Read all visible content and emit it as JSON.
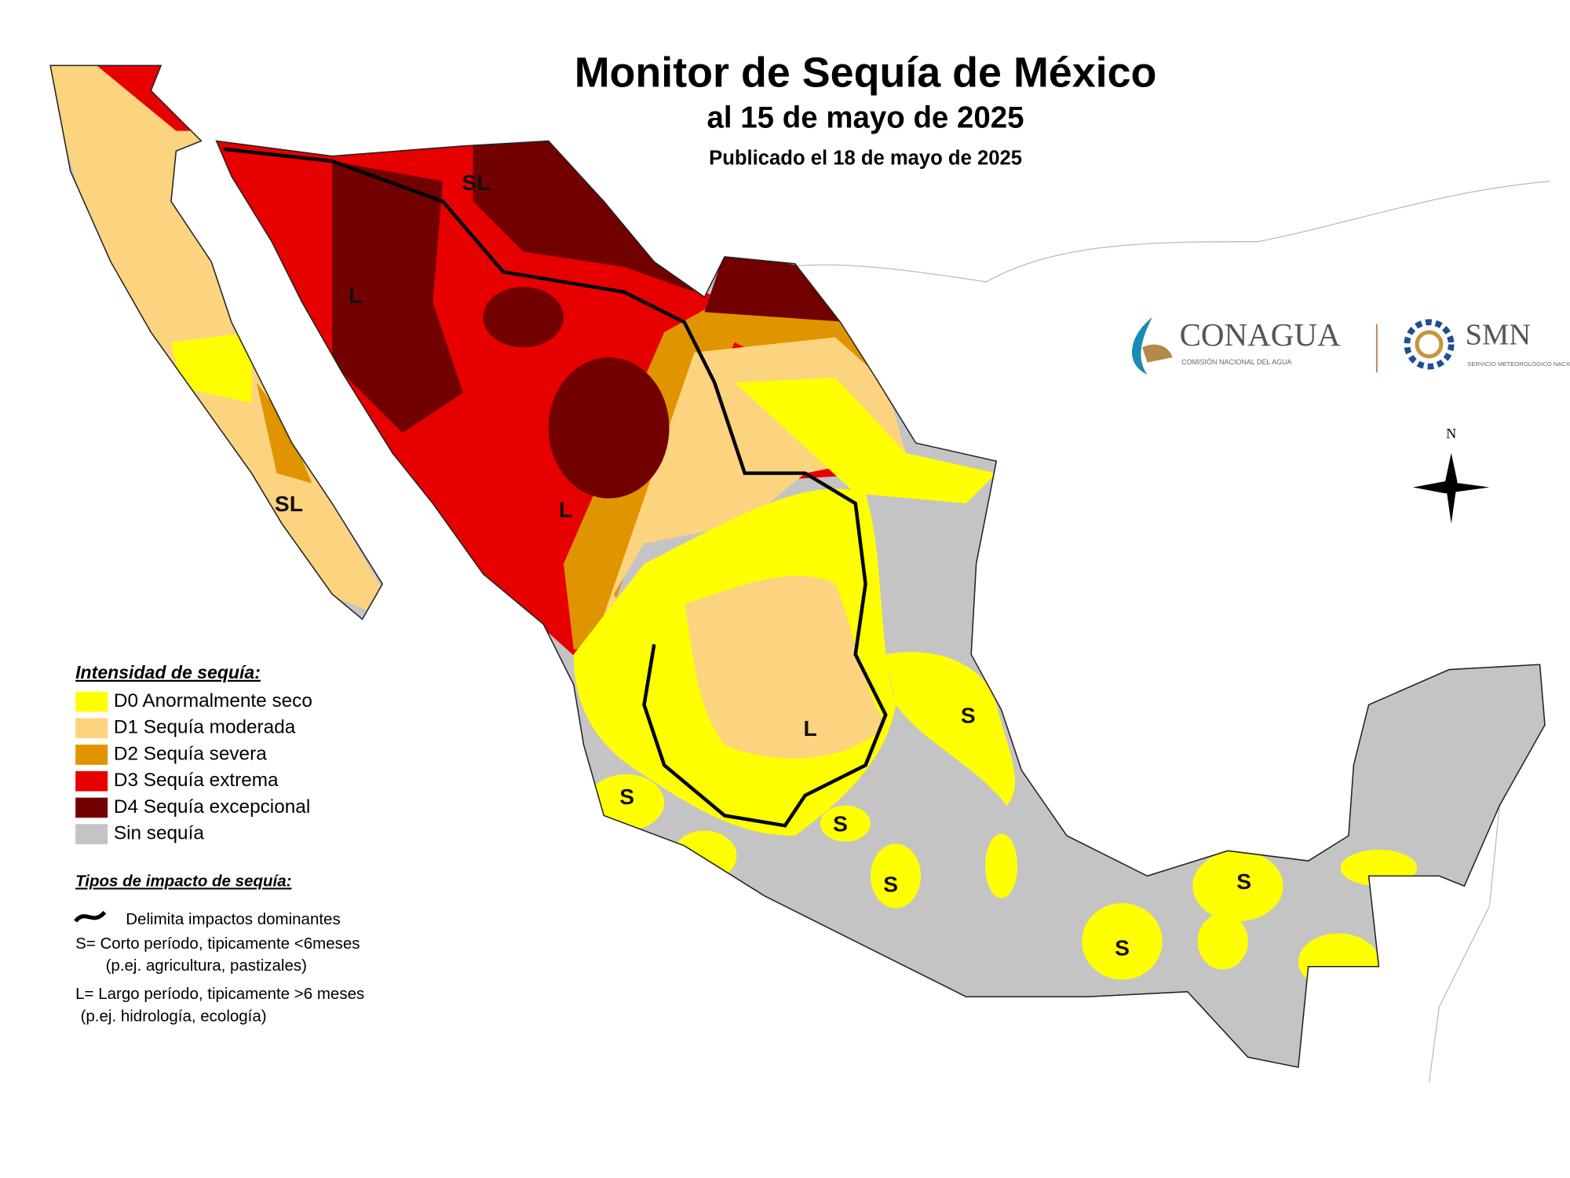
{
  "header": {
    "title": "Monitor de Sequía de México",
    "subtitle": "al 15 de mayo de 2025",
    "published": "Publicado el 18 de mayo de 2025"
  },
  "legend": {
    "title": "Intensidad de sequía:",
    "items": [
      {
        "label": "D0 Anormalmente seco",
        "color": "#ffff00"
      },
      {
        "label": "D1 Sequía moderada",
        "color": "#fcd37f"
      },
      {
        "label": "D2 Sequía severa",
        "color": "#e09400"
      },
      {
        "label": "D3 Sequía extrema",
        "color": "#e60000"
      },
      {
        "label": "D4 Sequía excepcional",
        "color": "#730000"
      },
      {
        "label": "Sin sequía",
        "color": "#c4c4c4"
      }
    ]
  },
  "impact": {
    "title": "Tipos de impacto de sequía:",
    "line_label": "Delimita impactos dominantes",
    "short": "S= Corto período, tipicamente <6meses",
    "short_example": "(p.ej. agricultura, pastizales)",
    "long": "L= Largo período, tipicamente >6 meses",
    "long_example": "(p.ej. hidrología, ecología)"
  },
  "map_labels": [
    "SL",
    "L",
    "L",
    "SL",
    "L",
    "S",
    "S",
    "S",
    "S",
    "S",
    "S"
  ],
  "logos": {
    "conagua": "CONAGUA",
    "conagua_subtitle": "COMISIÓN NACIONAL DEL AGUA",
    "smn": "SMN",
    "smn_subtitle": "SERVICIO METEOROLÓGICO NACIONAL"
  },
  "compass": "N"
}
